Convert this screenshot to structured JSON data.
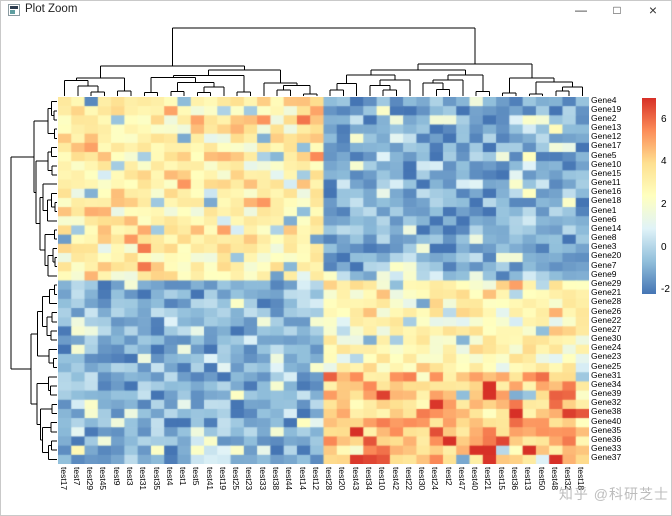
{
  "window": {
    "title": "Plot Zoom",
    "controls": {
      "minimize": "—",
      "maximize": "□",
      "close": "×"
    }
  },
  "watermark": "知乎 @科研芝士",
  "chart_data": {
    "type": "heatmap",
    "title": "",
    "rows": 40,
    "cols": 40,
    "row_labels": [
      "Gene4",
      "Gene19",
      "Gene2",
      "Gene13",
      "Gene12",
      "Gene17",
      "Gene5",
      "Gene10",
      "Gene15",
      "Gene11",
      "Gene16",
      "Gene18",
      "Gene1",
      "Gene6",
      "Gene14",
      "Gene8",
      "Gene3",
      "Gene20",
      "Gene7",
      "Gene9",
      "Gene29",
      "Gene21",
      "Gene28",
      "Gene26",
      "Gene22",
      "Gene27",
      "Gene30",
      "Gene24",
      "Gene23",
      "Gene25",
      "Gene31",
      "Gene34",
      "Gene39",
      "Gene32",
      "Gene38",
      "Gene40",
      "Gene35",
      "Gene36",
      "Gene33",
      "Gene37"
    ],
    "col_labels": [
      "test17",
      "test7",
      "test29",
      "test45",
      "test9",
      "test3",
      "test31",
      "test35",
      "test4",
      "test1",
      "test5",
      "test41",
      "test19",
      "test25",
      "test23",
      "test33",
      "test38",
      "test44",
      "test14",
      "test12",
      "test28",
      "test20",
      "test43",
      "test34",
      "test10",
      "test42",
      "test22",
      "test30",
      "test24",
      "test2",
      "test47",
      "test40",
      "test21",
      "test15",
      "test36",
      "test13",
      "test50",
      "test48",
      "test32",
      "test18"
    ],
    "legend_ticks": [
      6,
      4,
      2,
      0,
      -2
    ],
    "value_range": [
      -2.2,
      7.0
    ],
    "colormap": [
      "#4575B4",
      "#91BFDB",
      "#E0F3F8",
      "#FFFFBF",
      "#FEE090",
      "#FC8D59",
      "#D73027"
    ],
    "legend_position": "right",
    "row_clusters": [
      [
        0,
        19
      ],
      [
        20,
        39
      ]
    ],
    "col_clusters": [
      [
        0,
        19
      ],
      [
        20,
        39
      ]
    ],
    "blocks": [
      {
        "rows": [
          0,
          19
        ],
        "cols": [
          0,
          19
        ],
        "mean": 3.2,
        "sd": 1.0,
        "outlier_prob": 0.06,
        "outlier_shift": -4.0
      },
      {
        "rows": [
          0,
          19
        ],
        "cols": [
          20,
          39
        ],
        "mean": -1.0,
        "sd": 0.85,
        "outlier_prob": 0.07,
        "outlier_shift": 2.8
      },
      {
        "rows": [
          20,
          39
        ],
        "cols": [
          0,
          19
        ],
        "mean": -0.9,
        "sd": 0.85,
        "outlier_prob": 0.07,
        "outlier_shift": 2.8
      },
      {
        "rows": [
          20,
          29
        ],
        "cols": [
          20,
          39
        ],
        "mean": 2.7,
        "sd": 0.9,
        "outlier_prob": 0.05,
        "outlier_shift": -3.4
      },
      {
        "rows": [
          30,
          39
        ],
        "cols": [
          20,
          39
        ],
        "mean": 4.6,
        "sd": 1.3,
        "outlier_prob": 0.04,
        "outlier_shift": -5.0
      }
    ],
    "seed": 20240117
  }
}
